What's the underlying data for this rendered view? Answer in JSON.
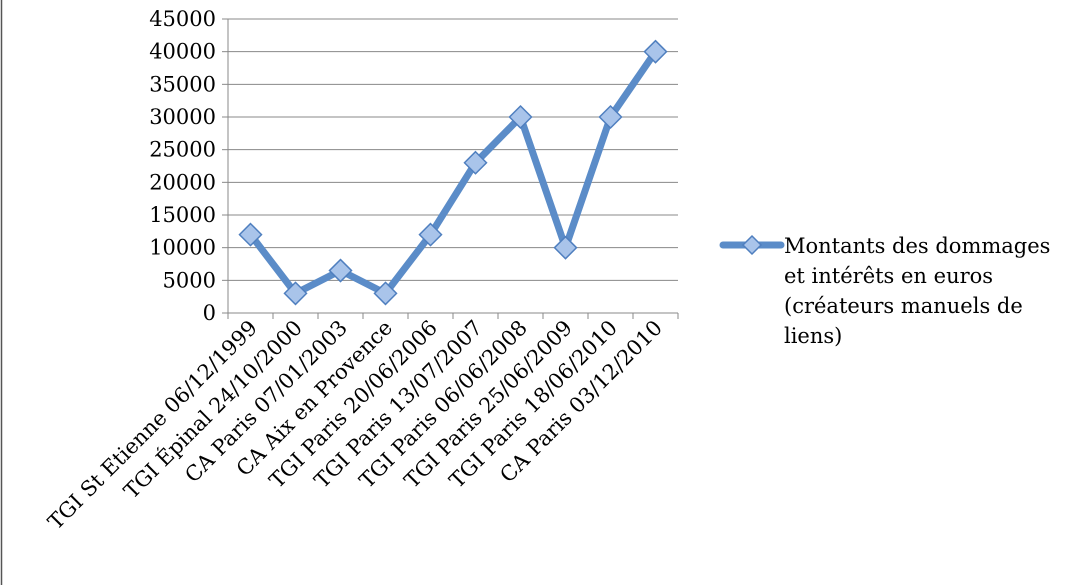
{
  "chart_data": {
    "type": "line",
    "categories": [
      "TGI St Etienne 06/12/1999",
      "TGI Épinal 24/10/2000",
      "CA Paris 07/01/2003",
      "CA Aix en Provence",
      "TGI Paris 20/06/2006",
      "TGI Paris 13/07/2007",
      "TGI Paris 06/06/2008",
      "TGI Paris 25/06/2009",
      "TGI Paris 18/06/2010",
      "CA Paris 03/12/2010"
    ],
    "series": [
      {
        "name": "Montants des dommages et intérêts en euros (créateurs manuels de liens)",
        "values": [
          12000,
          3000,
          6500,
          3000,
          12000,
          23000,
          30000,
          10000,
          30000,
          40000
        ],
        "color": "#5B8CC8"
      }
    ],
    "legend_lines": [
      "Montants des dommages",
      "et intérêts en euros",
      "(créateurs manuels de",
      "liens)"
    ],
    "ylim": [
      0,
      45000
    ],
    "yticks": [
      0,
      5000,
      10000,
      15000,
      20000,
      25000,
      30000,
      35000,
      40000,
      45000
    ],
    "grid": true,
    "legend_position": "right"
  }
}
